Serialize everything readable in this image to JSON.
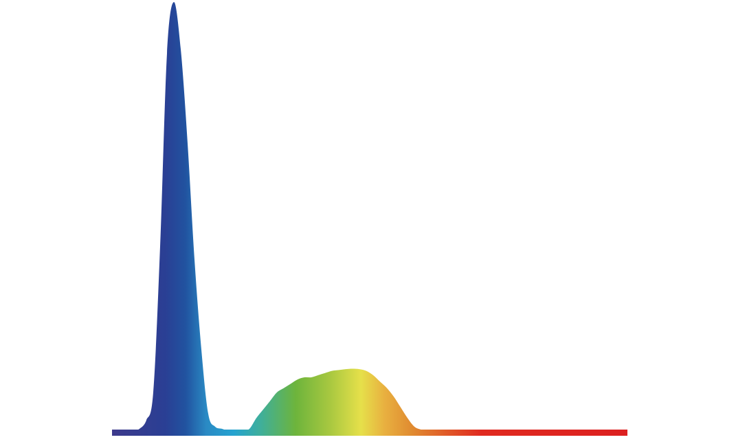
{
  "chart_data": {
    "type": "area",
    "title": "",
    "xlabel": "",
    "ylabel": "",
    "axes_visible": false,
    "grid": false,
    "legend": "none",
    "fill": "spectral-gradient",
    "ylim": [
      0,
      1
    ],
    "values": [
      0,
      0,
      0,
      0,
      0.005,
      0.025,
      0.09,
      0.43,
      0.88,
      1.0,
      0.89,
      0.67,
      0.4,
      0.19,
      0.04,
      0.01,
      0.005,
      0,
      0,
      0,
      0.005,
      0.03,
      0.05,
      0.07,
      0.09,
      0.1,
      0.11,
      0.12,
      0.125,
      0.125,
      0.13,
      0.135,
      0.14,
      0.142,
      0.144,
      0.145,
      0.144,
      0.14,
      0.13,
      0.115,
      0.1,
      0.08,
      0.055,
      0.03,
      0.01,
      0.003,
      0,
      0,
      0,
      0,
      0,
      0,
      0,
      0,
      0,
      0,
      0,
      0,
      0,
      0,
      0,
      0,
      0,
      0,
      0,
      0,
      0,
      0,
      0,
      0,
      0,
      0,
      0,
      0,
      0,
      0
    ],
    "gradient_colors": [
      "#3d3a8c",
      "#2a3f94",
      "#2153a0",
      "#2a8ac4",
      "#25a3d0",
      "#3faf9a",
      "#6db43c",
      "#a8c840",
      "#e6e04a",
      "#e8b040",
      "#e08a30",
      "#e05a28",
      "#e02a20",
      "#dc2020"
    ]
  }
}
